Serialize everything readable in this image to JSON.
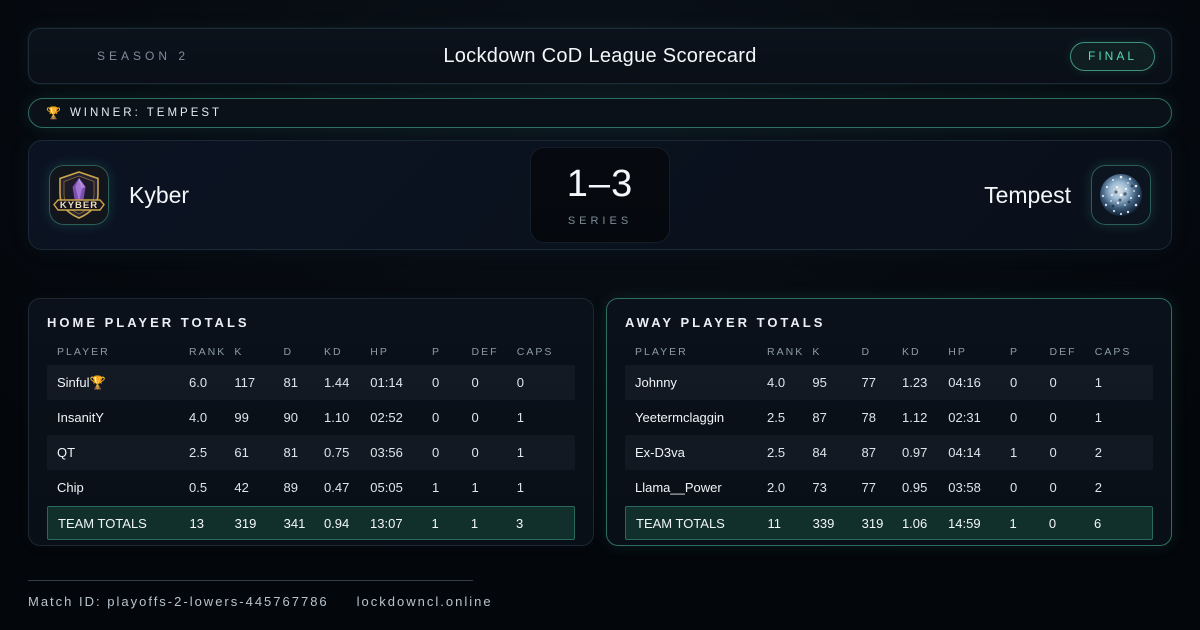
{
  "header": {
    "season": "SEASON 2",
    "title": "Lockdown CoD League Scorecard",
    "status_badge": "FINAL"
  },
  "winner_banner": {
    "trophy_icon": "🏆",
    "text": "WINNER: TEMPEST"
  },
  "scoreboard": {
    "home_team": "Kyber",
    "away_team": "Tempest",
    "series_score": "1–3",
    "series_label": "SERIES"
  },
  "tables": {
    "columns": [
      "PLAYER",
      "RANK",
      "K",
      "D",
      "KD",
      "HP",
      "P",
      "DEF",
      "CAPS"
    ],
    "home": {
      "title": "HOME PLAYER TOTALS",
      "rows": [
        [
          "Sinful🏆",
          "6.0",
          "117",
          "81",
          "1.44",
          "01:14",
          "0",
          "0",
          "0"
        ],
        [
          "InsanitY",
          "4.0",
          "99",
          "90",
          "1.10",
          "02:52",
          "0",
          "0",
          "1"
        ],
        [
          "QT",
          "2.5",
          "61",
          "81",
          "0.75",
          "03:56",
          "0",
          "0",
          "1"
        ],
        [
          "Chip",
          "0.5",
          "42",
          "89",
          "0.47",
          "05:05",
          "1",
          "1",
          "1"
        ]
      ],
      "totals": [
        "TEAM TOTALS",
        "13",
        "319",
        "341",
        "0.94",
        "13:07",
        "1",
        "1",
        "3"
      ]
    },
    "away": {
      "title": "AWAY PLAYER TOTALS",
      "rows": [
        [
          "Johnny",
          "4.0",
          "95",
          "77",
          "1.23",
          "04:16",
          "0",
          "0",
          "1"
        ],
        [
          "Yeetermclaggin",
          "2.5",
          "87",
          "78",
          "1.12",
          "02:31",
          "0",
          "0",
          "1"
        ],
        [
          "Ex-D3va",
          "2.5",
          "84",
          "87",
          "0.97",
          "04:14",
          "1",
          "0",
          "2"
        ],
        [
          "Llama__Power",
          "2.0",
          "73",
          "77",
          "0.95",
          "03:58",
          "0",
          "0",
          "2"
        ]
      ],
      "totals": [
        "TEAM TOTALS",
        "11",
        "339",
        "319",
        "1.06",
        "14:59",
        "1",
        "0",
        "6"
      ]
    }
  },
  "footer": {
    "match_id": "Match ID: playoffs-2-lowers-445767786",
    "site": "lockdowncl.online"
  },
  "colors": {
    "accent_teal": "#54d9b8",
    "accent_border": "#2e6e63",
    "totals_bg": "#12302b",
    "card_bg": "#0a111a",
    "kyber_gold": "#c9a54a",
    "kyber_purple": "#8b5fc0",
    "tempest_ice": "#cfe3f2"
  }
}
